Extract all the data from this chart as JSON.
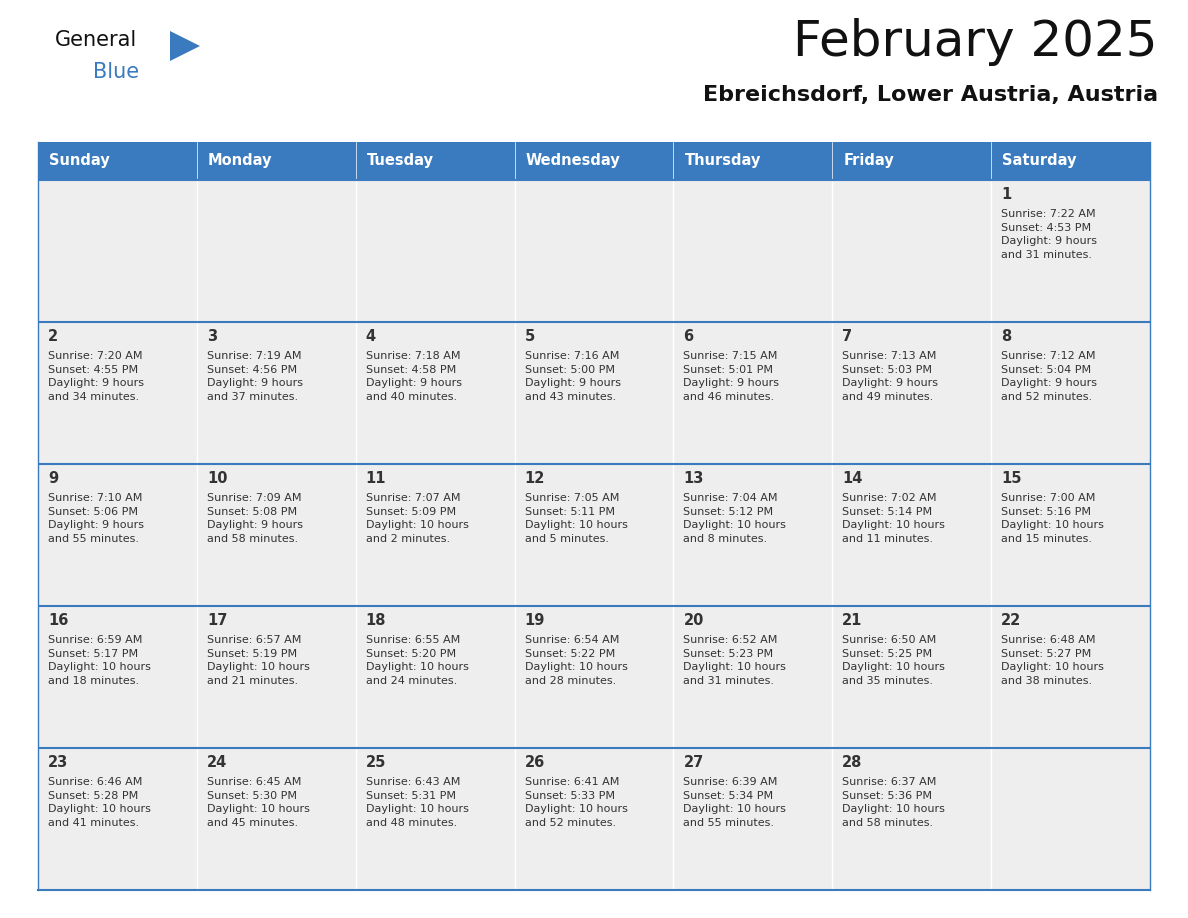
{
  "title": "February 2025",
  "subtitle": "Ebreichsdorf, Lower Austria, Austria",
  "header_color": "#3a7abf",
  "header_text_color": "#ffffff",
  "cell_bg_color": "#eeeeee",
  "cell_border_color": "#3a7abf",
  "day_number_color": "#333333",
  "info_text_color": "#333333",
  "days_of_week": [
    "Sunday",
    "Monday",
    "Tuesday",
    "Wednesday",
    "Thursday",
    "Friday",
    "Saturday"
  ],
  "weeks": [
    [
      {
        "day": null,
        "info": null
      },
      {
        "day": null,
        "info": null
      },
      {
        "day": null,
        "info": null
      },
      {
        "day": null,
        "info": null
      },
      {
        "day": null,
        "info": null
      },
      {
        "day": null,
        "info": null
      },
      {
        "day": 1,
        "info": "Sunrise: 7:22 AM\nSunset: 4:53 PM\nDaylight: 9 hours\nand 31 minutes."
      }
    ],
    [
      {
        "day": 2,
        "info": "Sunrise: 7:20 AM\nSunset: 4:55 PM\nDaylight: 9 hours\nand 34 minutes."
      },
      {
        "day": 3,
        "info": "Sunrise: 7:19 AM\nSunset: 4:56 PM\nDaylight: 9 hours\nand 37 minutes."
      },
      {
        "day": 4,
        "info": "Sunrise: 7:18 AM\nSunset: 4:58 PM\nDaylight: 9 hours\nand 40 minutes."
      },
      {
        "day": 5,
        "info": "Sunrise: 7:16 AM\nSunset: 5:00 PM\nDaylight: 9 hours\nand 43 minutes."
      },
      {
        "day": 6,
        "info": "Sunrise: 7:15 AM\nSunset: 5:01 PM\nDaylight: 9 hours\nand 46 minutes."
      },
      {
        "day": 7,
        "info": "Sunrise: 7:13 AM\nSunset: 5:03 PM\nDaylight: 9 hours\nand 49 minutes."
      },
      {
        "day": 8,
        "info": "Sunrise: 7:12 AM\nSunset: 5:04 PM\nDaylight: 9 hours\nand 52 minutes."
      }
    ],
    [
      {
        "day": 9,
        "info": "Sunrise: 7:10 AM\nSunset: 5:06 PM\nDaylight: 9 hours\nand 55 minutes."
      },
      {
        "day": 10,
        "info": "Sunrise: 7:09 AM\nSunset: 5:08 PM\nDaylight: 9 hours\nand 58 minutes."
      },
      {
        "day": 11,
        "info": "Sunrise: 7:07 AM\nSunset: 5:09 PM\nDaylight: 10 hours\nand 2 minutes."
      },
      {
        "day": 12,
        "info": "Sunrise: 7:05 AM\nSunset: 5:11 PM\nDaylight: 10 hours\nand 5 minutes."
      },
      {
        "day": 13,
        "info": "Sunrise: 7:04 AM\nSunset: 5:12 PM\nDaylight: 10 hours\nand 8 minutes."
      },
      {
        "day": 14,
        "info": "Sunrise: 7:02 AM\nSunset: 5:14 PM\nDaylight: 10 hours\nand 11 minutes."
      },
      {
        "day": 15,
        "info": "Sunrise: 7:00 AM\nSunset: 5:16 PM\nDaylight: 10 hours\nand 15 minutes."
      }
    ],
    [
      {
        "day": 16,
        "info": "Sunrise: 6:59 AM\nSunset: 5:17 PM\nDaylight: 10 hours\nand 18 minutes."
      },
      {
        "day": 17,
        "info": "Sunrise: 6:57 AM\nSunset: 5:19 PM\nDaylight: 10 hours\nand 21 minutes."
      },
      {
        "day": 18,
        "info": "Sunrise: 6:55 AM\nSunset: 5:20 PM\nDaylight: 10 hours\nand 24 minutes."
      },
      {
        "day": 19,
        "info": "Sunrise: 6:54 AM\nSunset: 5:22 PM\nDaylight: 10 hours\nand 28 minutes."
      },
      {
        "day": 20,
        "info": "Sunrise: 6:52 AM\nSunset: 5:23 PM\nDaylight: 10 hours\nand 31 minutes."
      },
      {
        "day": 21,
        "info": "Sunrise: 6:50 AM\nSunset: 5:25 PM\nDaylight: 10 hours\nand 35 minutes."
      },
      {
        "day": 22,
        "info": "Sunrise: 6:48 AM\nSunset: 5:27 PM\nDaylight: 10 hours\nand 38 minutes."
      }
    ],
    [
      {
        "day": 23,
        "info": "Sunrise: 6:46 AM\nSunset: 5:28 PM\nDaylight: 10 hours\nand 41 minutes."
      },
      {
        "day": 24,
        "info": "Sunrise: 6:45 AM\nSunset: 5:30 PM\nDaylight: 10 hours\nand 45 minutes."
      },
      {
        "day": 25,
        "info": "Sunrise: 6:43 AM\nSunset: 5:31 PM\nDaylight: 10 hours\nand 48 minutes."
      },
      {
        "day": 26,
        "info": "Sunrise: 6:41 AM\nSunset: 5:33 PM\nDaylight: 10 hours\nand 52 minutes."
      },
      {
        "day": 27,
        "info": "Sunrise: 6:39 AM\nSunset: 5:34 PM\nDaylight: 10 hours\nand 55 minutes."
      },
      {
        "day": 28,
        "info": "Sunrise: 6:37 AM\nSunset: 5:36 PM\nDaylight: 10 hours\nand 58 minutes."
      },
      {
        "day": null,
        "info": null
      }
    ]
  ],
  "logo_general_color": "#111111",
  "logo_blue_color": "#3a7abf",
  "logo_triangle_color": "#3a7abf",
  "title_color": "#111111",
  "subtitle_color": "#111111"
}
